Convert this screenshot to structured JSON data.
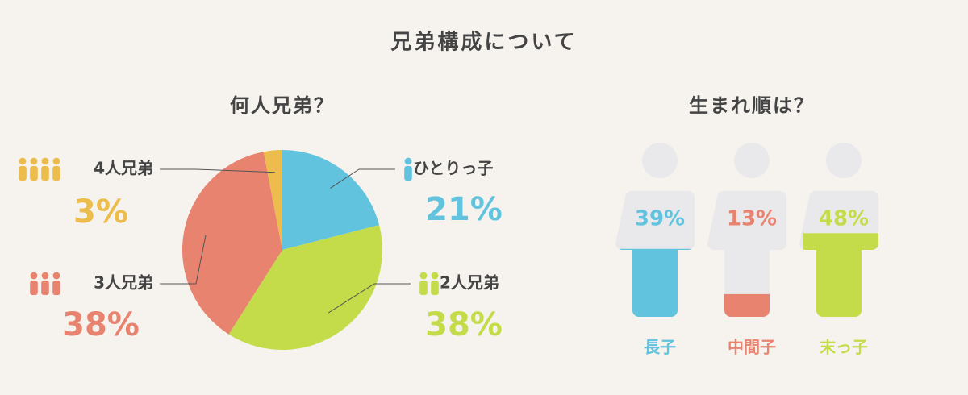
{
  "title": "兄弟構成について",
  "chart_data": [
    {
      "type": "pie",
      "title": "何人兄弟？",
      "categories": [
        "ひとりっ子",
        "2人兄弟",
        "3人兄弟",
        "4人兄弟"
      ],
      "values": [
        21,
        38,
        38,
        3
      ],
      "value_labels": [
        "21%",
        "38%",
        "38%",
        "3%"
      ],
      "colors": [
        "#62c3de",
        "#c4dc4a",
        "#e8836f",
        "#ecbc4c"
      ]
    },
    {
      "type": "person-fill",
      "title": "生まれ順は？",
      "categories": [
        "長子",
        "中間子",
        "末っ子"
      ],
      "values": [
        39,
        13,
        48
      ],
      "value_labels": [
        "39%",
        "13%",
        "48%"
      ],
      "colors": [
        "#62c3de",
        "#e8836f",
        "#c4dc4a"
      ],
      "ylim": [
        0,
        100
      ]
    }
  ]
}
